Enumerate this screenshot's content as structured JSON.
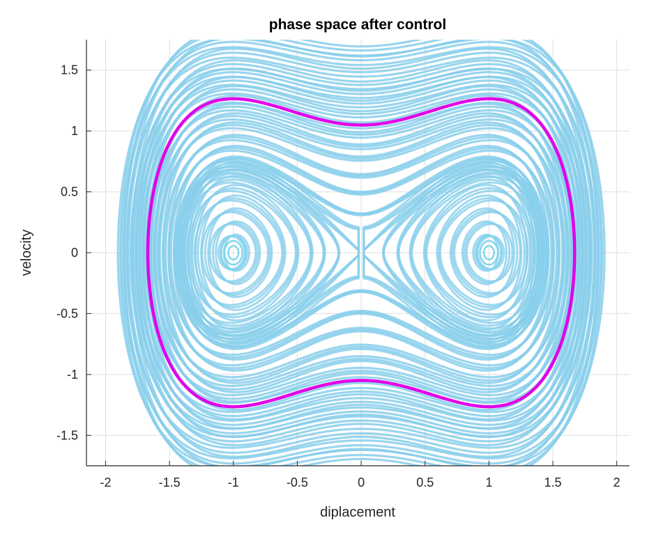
{
  "chart_data": {
    "type": "line",
    "title": "phase space after control",
    "xlabel": "diplacement",
    "ylabel": "velocity",
    "xlim": [
      -2.15,
      2.1
    ],
    "ylim": [
      -1.75,
      1.75
    ],
    "xticks": [
      -2,
      -1.5,
      -1,
      -0.5,
      0,
      0.5,
      1,
      1.5,
      2
    ],
    "xtick_labels": [
      "-2",
      "-1.5",
      "-1",
      "-0.5",
      "0",
      "0.5",
      "1",
      "1.5",
      "2"
    ],
    "yticks": [
      -1.5,
      -1,
      -0.5,
      0,
      0.5,
      1,
      1.5
    ],
    "ytick_labels": [
      "-1.5",
      "-1",
      "-0.5",
      "0",
      "0.5",
      "1",
      "1.5"
    ],
    "grid": true,
    "legend": "none",
    "series": [
      {
        "role": "uncontrolled trajectories",
        "color": "#87ceeb",
        "description_of_shape": "dense chaotic orbits of a double-well oscillator around centers at x=-1 and x=1, plus outer loops reaching |x|~2.1, |v|~1.75",
        "outer_energy_levels": [
          0.05,
          0.12,
          0.2,
          0.3,
          0.38,
          0.47,
          0.55,
          0.65,
          0.75,
          0.85,
          0.95,
          1.1,
          1.25,
          1.38
        ],
        "inner_well_energy_levels": [
          -0.24,
          -0.22,
          -0.19,
          -0.15,
          -0.11,
          -0.07,
          -0.04,
          -0.015,
          0.0,
          0.02
        ]
      },
      {
        "role": "controlled orbit",
        "color": "#e000e8",
        "energy_level": 0.55,
        "points": [
          [
            -1.87,
            0
          ],
          [
            -1.6,
            0.98
          ],
          [
            -1.2,
            1.18
          ],
          [
            -1.0,
            1.2
          ],
          [
            -0.5,
            1.12
          ],
          [
            0,
            1.05
          ],
          [
            0.5,
            1.12
          ],
          [
            1.0,
            1.2
          ],
          [
            1.2,
            1.18
          ],
          [
            1.6,
            0.98
          ],
          [
            1.87,
            0
          ],
          [
            1.6,
            -0.98
          ],
          [
            1.2,
            -1.18
          ],
          [
            1.0,
            -1.2
          ],
          [
            0.5,
            -1.12
          ],
          [
            0,
            -1.05
          ],
          [
            -0.5,
            -1.12
          ],
          [
            -1.0,
            -1.2
          ],
          [
            -1.2,
            -1.18
          ],
          [
            -1.6,
            -0.98
          ],
          [
            -1.87,
            0
          ]
        ]
      }
    ]
  }
}
